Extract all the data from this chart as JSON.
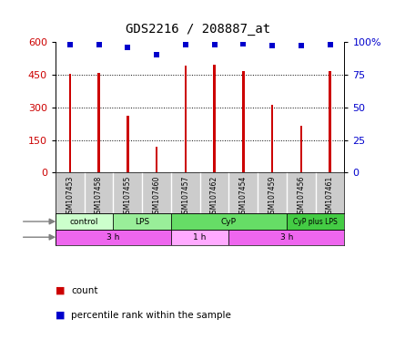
{
  "title": "GDS2216 / 208887_at",
  "samples": [
    "GSM107453",
    "GSM107458",
    "GSM107455",
    "GSM107460",
    "GSM107457",
    "GSM107462",
    "GSM107454",
    "GSM107459",
    "GSM107456",
    "GSM107461"
  ],
  "counts": [
    453,
    460,
    260,
    120,
    490,
    495,
    468,
    310,
    215,
    465
  ],
  "percentile_ranks": [
    98,
    98,
    96,
    90,
    98,
    98,
    99,
    97,
    97,
    98
  ],
  "ylim_left": [
    0,
    600
  ],
  "ylim_right": [
    0,
    100
  ],
  "yticks_left": [
    0,
    150,
    300,
    450,
    600
  ],
  "yticks_right": [
    0,
    25,
    50,
    75,
    100
  ],
  "bar_color": "#cc0000",
  "dot_color": "#0000cc",
  "agent_groups": [
    {
      "label": "control",
      "start": 0,
      "end": 2,
      "color": "#ccffcc"
    },
    {
      "label": "LPS",
      "start": 2,
      "end": 4,
      "color": "#99ee99"
    },
    {
      "label": "CyP",
      "start": 4,
      "end": 8,
      "color": "#66dd66"
    },
    {
      "label": "CyP plus LPS",
      "start": 8,
      "end": 10,
      "color": "#44cc44"
    }
  ],
  "time_groups": [
    {
      "label": "3 h",
      "start": 0,
      "end": 4,
      "color": "#ee66ee"
    },
    {
      "label": "1 h",
      "start": 4,
      "end": 6,
      "color": "#ffaaff"
    },
    {
      "label": "3 h",
      "start": 6,
      "end": 10,
      "color": "#ee66ee"
    }
  ],
  "legend_count_label": "count",
  "legend_pct_label": "percentile rank within the sample",
  "background_color": "#ffffff",
  "bar_width": 0.08,
  "sample_bg_color": "#cccccc",
  "sample_divider_color": "#ffffff"
}
